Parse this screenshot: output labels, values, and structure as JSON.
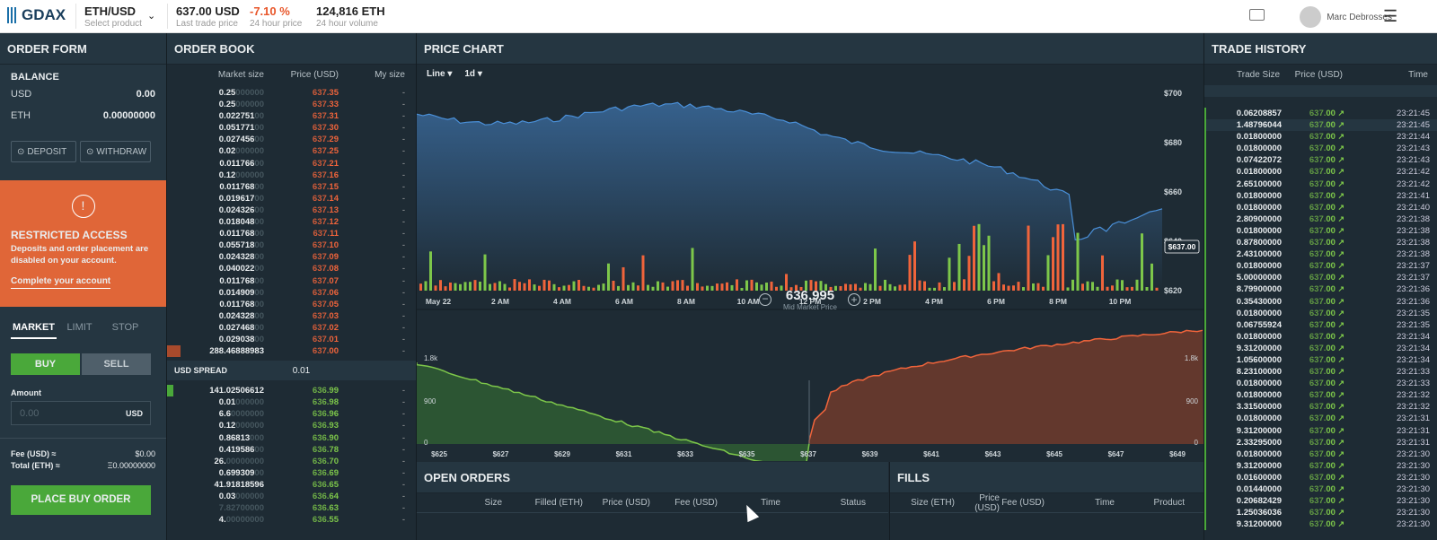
{
  "topbar": {
    "logo": "GDAX",
    "product": "ETH/USD",
    "product_sub": "Select product",
    "last_price": "637.00 USD",
    "last_price_sub": "Last trade price",
    "change": "-7.10 %",
    "change_sub": "24 hour price",
    "volume": "124,816 ETH",
    "volume_sub": "24 hour volume",
    "user": "Marc Debrosses"
  },
  "order_form": {
    "title": "ORDER FORM",
    "balance_title": "BALANCE",
    "usd_label": "USD",
    "usd_value": "0.00",
    "eth_label": "ETH",
    "eth_value": "0.00000000",
    "deposit": "DEPOSIT",
    "withdraw": "WITHDRAW",
    "restricted_title": "RESTRICTED ACCESS",
    "restricted_text": "Deposits and order placement are disabled on your account.",
    "complete_link": "Complete your account",
    "tabs": [
      "MARKET",
      "LIMIT",
      "STOP"
    ],
    "buy": "BUY",
    "sell": "SELL",
    "amount_label": "Amount",
    "amount_placeholder": "0.00",
    "amount_unit": "USD",
    "fee_label": "Fee (USD) ≈",
    "fee_value": "$0.00",
    "total_label": "Total (ETH) ≈",
    "total_value": "Ξ0.00000000",
    "place_order": "PLACE BUY ORDER"
  },
  "order_book": {
    "title": "ORDER BOOK",
    "col_size": "Market size",
    "col_price": "Price (USD)",
    "col_my": "My size",
    "spread_label": "USD SPREAD",
    "spread_value": "0.01",
    "asks": [
      [
        "0.25",
        "000000",
        "637.",
        "35"
      ],
      [
        "0.25",
        "000000",
        "637.",
        "33"
      ],
      [
        "0.022751",
        "00",
        "637.",
        "31"
      ],
      [
        "0.051771",
        "00",
        "637.",
        "30"
      ],
      [
        "0.027456",
        "00",
        "637.",
        "29"
      ],
      [
        "0.02",
        "000000",
        "637.",
        "25"
      ],
      [
        "0.011766",
        "00",
        "637.",
        "21"
      ],
      [
        "0.12",
        "000000",
        "637.",
        "16"
      ],
      [
        "0.011768",
        "00",
        "637.",
        "15"
      ],
      [
        "0.019617",
        "00",
        "637.",
        "14"
      ],
      [
        "0.024326",
        "00",
        "637.",
        "13"
      ],
      [
        "0.018048",
        "00",
        "637.",
        "12"
      ],
      [
        "0.011768",
        "00",
        "637.",
        "11"
      ],
      [
        "0.055718",
        "00",
        "637.",
        "10"
      ],
      [
        "0.024328",
        "00",
        "637.",
        "09"
      ],
      [
        "0.040022",
        "00",
        "637.",
        "08"
      ],
      [
        "0.011768",
        "00",
        "637.",
        "07"
      ],
      [
        "0.014909",
        "00",
        "637.",
        "06"
      ],
      [
        "0.011768",
        "00",
        "637.",
        "05"
      ],
      [
        "0.024328",
        "00",
        "637.",
        "03"
      ],
      [
        "0.027468",
        "00",
        "637.",
        "02"
      ],
      [
        "0.029038",
        "00",
        "637.",
        "01"
      ],
      [
        "288.46888983",
        "",
        "637.",
        "00"
      ]
    ],
    "bids": [
      [
        "141.02506612",
        "",
        "636.",
        "99"
      ],
      [
        "0.01",
        "000000",
        "636.",
        "98"
      ],
      [
        "6.6",
        "0000000",
        "636.",
        "96"
      ],
      [
        "0.12",
        "000000",
        "636.",
        "93"
      ],
      [
        "0.86813",
        "000",
        "636.",
        "90"
      ],
      [
        "0.419586",
        "00",
        "636.",
        "78"
      ],
      [
        "26.",
        "00000000",
        "636.",
        "70"
      ],
      [
        "0.699309",
        "00",
        "636.",
        "69"
      ],
      [
        "41.91818596",
        "",
        "636.",
        "65"
      ],
      [
        "0.03",
        "000000",
        "636.",
        "64"
      ],
      [
        "",
        "7.82700000",
        "636.",
        "63"
      ],
      [
        "4.",
        "00000000",
        "636.",
        "55"
      ]
    ],
    "my_size": "-"
  },
  "price_chart": {
    "title": "PRICE CHART",
    "type_select": "Line",
    "interval_select": "1d",
    "current_label": "$637.00",
    "mid_price": "636.995",
    "mid_label": "Mid Market Price",
    "y_ticks": [
      "$700",
      "$680",
      "$660",
      "$640",
      "$620"
    ],
    "x_ticks": [
      "May 22",
      "2 AM",
      "4 AM",
      "6 AM",
      "8 AM",
      "10 AM",
      "12 PM",
      "2 PM",
      "4 PM",
      "6 PM",
      "8 PM",
      "10 PM"
    ],
    "depth_x_ticks": [
      "$625",
      "$627",
      "$629",
      "$631",
      "$633",
      "$635",
      "$637",
      "$639",
      "$641",
      "$643",
      "$645",
      "$647",
      "$649"
    ],
    "depth_y_left": [
      "1.8k",
      "900",
      "0"
    ],
    "depth_y_right": [
      "1.8k",
      "900",
      "0"
    ],
    "colors": {
      "bid": "#7dc74a",
      "ask": "#f0643b",
      "line": "#4a90d9"
    }
  },
  "open_orders": {
    "title": "OPEN ORDERS",
    "cols": [
      "Size",
      "Filled (ETH)",
      "Price (USD)",
      "Fee (USD)",
      "Time",
      "Status"
    ]
  },
  "fills": {
    "title": "FILLS",
    "cols": [
      "Size (ETH)",
      "Price (USD)",
      "Fee (USD)",
      "Time",
      "Product"
    ]
  },
  "trade_history": {
    "title": "TRADE HISTORY",
    "col_size": "Trade Size",
    "col_price": "Price (USD)",
    "col_time": "Time",
    "price_int": "637.",
    "price_dec": "00",
    "rows": [
      [
        "0.06208857",
        "23:21:45"
      ],
      [
        "1.48796044",
        "23:21:45"
      ],
      [
        "0.01800000",
        "23:21:44"
      ],
      [
        "0.01800000",
        "23:21:43"
      ],
      [
        "0.07422072",
        "23:21:43"
      ],
      [
        "0.01800000",
        "23:21:42"
      ],
      [
        "2.65100000",
        "23:21:42"
      ],
      [
        "0.01800000",
        "23:21:41"
      ],
      [
        "0.01800000",
        "23:21:40"
      ],
      [
        "2.80900000",
        "23:21:38"
      ],
      [
        "0.01800000",
        "23:21:38"
      ],
      [
        "0.87800000",
        "23:21:38"
      ],
      [
        "2.43100000",
        "23:21:38"
      ],
      [
        "0.01800000",
        "23:21:37"
      ],
      [
        "5.00000000",
        "23:21:37"
      ],
      [
        "8.79900000",
        "23:21:36"
      ],
      [
        "0.35430000",
        "23:21:36"
      ],
      [
        "0.01800000",
        "23:21:35"
      ],
      [
        "0.06755924",
        "23:21:35"
      ],
      [
        "0.01800000",
        "23:21:34"
      ],
      [
        "9.31200000",
        "23:21:34"
      ],
      [
        "1.05600000",
        "23:21:34"
      ],
      [
        "8.23100000",
        "23:21:33"
      ],
      [
        "0.01800000",
        "23:21:33"
      ],
      [
        "0.01800000",
        "23:21:32"
      ],
      [
        "3.31500000",
        "23:21:32"
      ],
      [
        "0.01800000",
        "23:21:31"
      ],
      [
        "9.31200000",
        "23:21:31"
      ],
      [
        "2.33295000",
        "23:21:31"
      ],
      [
        "0.01800000",
        "23:21:30"
      ],
      [
        "9.31200000",
        "23:21:30"
      ],
      [
        "0.01600000",
        "23:21:30"
      ],
      [
        "0.01440000",
        "23:21:30"
      ],
      [
        "0.20682429",
        "23:21:30"
      ],
      [
        "1.25036036",
        "23:21:30"
      ],
      [
        "9.31200000",
        "23:21:30"
      ]
    ]
  }
}
